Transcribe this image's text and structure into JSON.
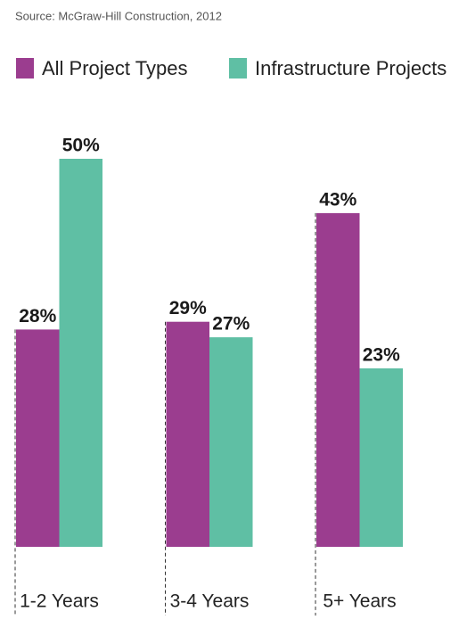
{
  "chart_data": {
    "type": "bar",
    "source": "Source: McGraw-Hill Construction, 2012",
    "categories": [
      "1-2 Years",
      "3-4 Years",
      "5+ Years"
    ],
    "series": [
      {
        "name": "All Project Types",
        "color": "#9b3d8f",
        "values": [
          28,
          29,
          43
        ],
        "value_labels": [
          "28%",
          "29%",
          "43%"
        ]
      },
      {
        "name": "Infrastructure Projects",
        "color": "#5fbfa4",
        "values": [
          50,
          27,
          23
        ],
        "value_labels": [
          "50%",
          "27%",
          "23%"
        ]
      }
    ]
  }
}
